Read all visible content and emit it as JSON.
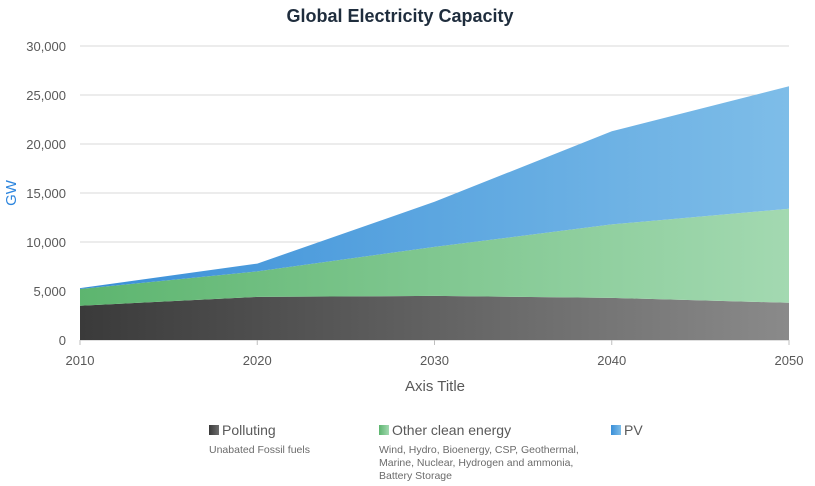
{
  "chart_data": {
    "type": "area",
    "stacked": true,
    "title": "Global Electricity Capacity",
    "xlabel": "Axis Title",
    "ylabel": "GW",
    "x": [
      2010,
      2020,
      2030,
      2040,
      2050
    ],
    "x_tick_labels": [
      "2010",
      "2020",
      "2030",
      "2040",
      "2050"
    ],
    "ylim": [
      0,
      30000
    ],
    "y_ticks": [
      0,
      5000,
      10000,
      15000,
      20000,
      25000,
      30000
    ],
    "y_tick_labels": [
      "0",
      "5,000",
      "10,000",
      "15,000",
      "20,000",
      "25,000",
      "30,000"
    ],
    "grid": true,
    "legend_position": "bottom",
    "series": [
      {
        "name": "Polluting",
        "description": "Unabated Fossil fuels",
        "values": [
          3500,
          4400,
          4500,
          4300,
          3800
        ],
        "color_start": "#3a3a3a",
        "color_end": "#8a8a8a"
      },
      {
        "name": "Other clean energy",
        "description": "Wind, Hydro, Bioenergy, CSP, Geothermal, Marine, Nuclear, Hydrogen and ammonia, Battery Storage",
        "values": [
          1700,
          2600,
          5000,
          7500,
          9600
        ],
        "color_start": "#5db56f",
        "color_end": "#a3d9b1"
      },
      {
        "name": "PV",
        "description": "",
        "values": [
          100,
          800,
          4600,
          9500,
          12500
        ],
        "color_start": "#3a8fd8",
        "color_end": "#7ebde8"
      }
    ]
  }
}
